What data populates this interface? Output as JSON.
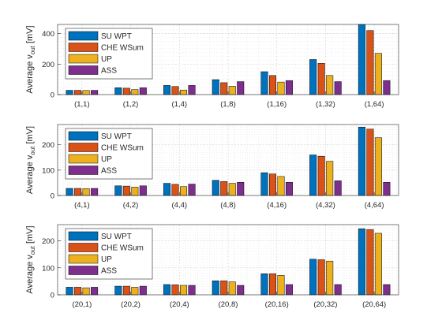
{
  "colors": [
    "#0072BD",
    "#D95319",
    "#EDB120",
    "#7E2F8E"
  ],
  "chart_data": [
    {
      "type": "bar",
      "ylabel": "Average v",
      "ylabel_sub": "out",
      "ylabel_unit": " [mV]",
      "ylim": [
        0,
        460
      ],
      "yticks": [
        0,
        200,
        400
      ],
      "grid": true,
      "legend_position": "top-left",
      "categories": [
        "(1,1)",
        "(1,2)",
        "(1,4)",
        "(1,8)",
        "(1,16)",
        "(1,32)",
        "(1,64)"
      ],
      "series": [
        {
          "name": "SU WPT",
          "values": [
            28,
            45,
            60,
            98,
            150,
            230,
            470
          ]
        },
        {
          "name": "CHE WSum",
          "values": [
            28,
            42,
            53,
            78,
            125,
            205,
            420
          ]
        },
        {
          "name": "UP",
          "values": [
            27,
            33,
            30,
            55,
            82,
            125,
            270
          ]
        },
        {
          "name": "ASS",
          "values": [
            28,
            45,
            60,
            85,
            92,
            85,
            92
          ]
        }
      ]
    },
    {
      "type": "bar",
      "ylabel": "Average v",
      "ylabel_sub": "out",
      "ylabel_unit": " [mV]",
      "ylim": [
        0,
        280
      ],
      "yticks": [
        0,
        100,
        200
      ],
      "grid": true,
      "legend_position": "top-left",
      "categories": [
        "(4,1)",
        "(4,2)",
        "(4,4)",
        "(4,8)",
        "(4,16)",
        "(4,32)",
        "(4,64)"
      ],
      "series": [
        {
          "name": "SU WPT",
          "values": [
            28,
            38,
            48,
            60,
            90,
            160,
            270
          ]
        },
        {
          "name": "CHE WSum",
          "values": [
            28,
            37,
            44,
            55,
            85,
            155,
            262
          ]
        },
        {
          "name": "UP",
          "values": [
            27,
            33,
            35,
            48,
            75,
            135,
            228
          ]
        },
        {
          "name": "ASS",
          "values": [
            28,
            38,
            45,
            52,
            52,
            58,
            52
          ]
        }
      ]
    },
    {
      "type": "bar",
      "ylabel": "Average v",
      "ylabel_sub": "out",
      "ylabel_unit": " [mV]",
      "ylim": [
        0,
        260
      ],
      "yticks": [
        0,
        100,
        200
      ],
      "grid": true,
      "legend_position": "top-left",
      "categories": [
        "(20,1)",
        "(20,2)",
        "(20,4)",
        "(20,8)",
        "(20,16)",
        "(20,32)",
        "(20,64)"
      ],
      "series": [
        {
          "name": "SU WPT",
          "values": [
            28,
            32,
            38,
            52,
            78,
            132,
            245
          ]
        },
        {
          "name": "CHE WSum",
          "values": [
            28,
            32,
            37,
            52,
            78,
            130,
            242
          ]
        },
        {
          "name": "UP",
          "values": [
            26,
            28,
            35,
            48,
            72,
            125,
            228
          ]
        },
        {
          "name": "ASS",
          "values": [
            28,
            32,
            35,
            35,
            38,
            38,
            38
          ]
        }
      ]
    }
  ]
}
